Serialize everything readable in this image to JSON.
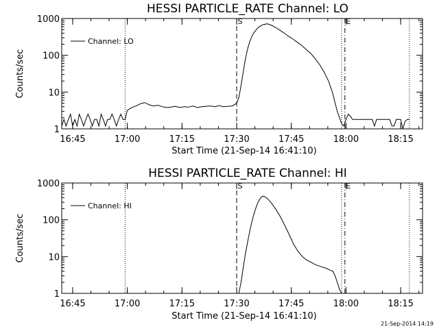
{
  "footer": {
    "timestamp": "21-Sep-2014 14:19"
  },
  "chart_data": [
    {
      "type": "line",
      "title": "HESSI PARTICLE_RATE Channel: LO",
      "xlabel": "Start Time (21-Sep-14 16:41:10)",
      "ylabel": "Counts/sec",
      "xlim": [
        16.7,
        18.35
      ],
      "ylim": [
        1,
        1000
      ],
      "yscale": "log",
      "xticks": [
        {
          "value": 16.75,
          "label": "16:45"
        },
        {
          "value": 17.0,
          "label": "17:00"
        },
        {
          "value": 17.25,
          "label": "17:15"
        },
        {
          "value": 17.5,
          "label": "17:30"
        },
        {
          "value": 17.75,
          "label": "17:45"
        },
        {
          "value": 18.0,
          "label": "18:00"
        },
        {
          "value": 18.25,
          "label": "18:15"
        }
      ],
      "yticks": [
        {
          "value": 1,
          "label": "1"
        },
        {
          "value": 10,
          "label": "10"
        },
        {
          "value": 100,
          "label": "100"
        },
        {
          "value": 1000,
          "label": "1000"
        }
      ],
      "grid": false,
      "legend": "top-left",
      "series": [
        {
          "name": "Channel: LO",
          "x": [
            16.7,
            16.71,
            16.72,
            16.73,
            16.74,
            16.75,
            16.76,
            16.77,
            16.78,
            16.79,
            16.8,
            16.81,
            16.82,
            16.83,
            16.84,
            16.85,
            16.86,
            16.87,
            16.88,
            16.89,
            16.9,
            16.91,
            16.92,
            16.93,
            16.94,
            16.95,
            16.96,
            16.97,
            16.98,
            16.985,
            16.99,
            17.0,
            17.02,
            17.04,
            17.06,
            17.08,
            17.1,
            17.12,
            17.14,
            17.16,
            17.18,
            17.2,
            17.22,
            17.24,
            17.26,
            17.28,
            17.3,
            17.32,
            17.34,
            17.36,
            17.38,
            17.4,
            17.42,
            17.44,
            17.46,
            17.48,
            17.5,
            17.51,
            17.52,
            17.53,
            17.54,
            17.55,
            17.56,
            17.57,
            17.58,
            17.59,
            17.6,
            17.62,
            17.64,
            17.66,
            17.68,
            17.7,
            17.72,
            17.74,
            17.76,
            17.78,
            17.8,
            17.82,
            17.84,
            17.86,
            17.88,
            17.9,
            17.92,
            17.94,
            17.95,
            17.96,
            17.97,
            17.98,
            17.99,
            18.0,
            18.01,
            18.02,
            18.03,
            18.04,
            18.05,
            18.06,
            18.07,
            18.08,
            18.09,
            18.1,
            18.11,
            18.12,
            18.13,
            18.14,
            18.15,
            18.16,
            18.17,
            18.18,
            18.19,
            18.2,
            18.21,
            18.22,
            18.23,
            18.24,
            18.25,
            18.26,
            18.27,
            18.28,
            18.29
          ],
          "y": [
            1.2,
            1.8,
            1.2,
            1.8,
            2.5,
            1.2,
            1.8,
            1.2,
            2.5,
            1.8,
            1.2,
            1.8,
            2.5,
            1.8,
            1.2,
            1.8,
            1.8,
            1.2,
            2.5,
            1.8,
            1.2,
            1.8,
            1.8,
            2.5,
            1.8,
            1.2,
            1.8,
            2.5,
            1.8,
            1.8,
            1.8,
            3.2,
            3.8,
            4.2,
            4.8,
            5.2,
            4.5,
            4.2,
            4.4,
            4.0,
            3.8,
            3.9,
            4.1,
            3.8,
            4.0,
            3.9,
            4.2,
            3.8,
            4.0,
            4.1,
            4.2,
            4.0,
            4.3,
            4.0,
            4.1,
            4.2,
            5.0,
            7.0,
            15,
            35,
            80,
            150,
            240,
            330,
            420,
            500,
            580,
            680,
            720,
            650,
            560,
            470,
            390,
            320,
            270,
            220,
            180,
            140,
            110,
            80,
            55,
            35,
            20,
            9,
            5,
            3,
            2,
            1.4,
            1.2,
            1.8,
            2.5,
            2.2,
            1.8,
            1.8,
            1.8,
            1.8,
            1.8,
            1.8,
            1.8,
            1.8,
            1.8,
            1.8,
            1.2,
            1.8,
            1.8,
            1.8,
            1.8,
            1.8,
            1.8,
            1.8,
            1.2,
            1.2,
            1.8,
            1.8,
            1.8,
            1.0,
            1.6,
            1.8,
            1.8
          ]
        }
      ],
      "markers": [
        {
          "x": 16.99,
          "style": "dotted",
          "label": ""
        },
        {
          "x": 17.5,
          "style": "dashed",
          "label": "S"
        },
        {
          "x": 17.98,
          "style": "dotted",
          "label": ""
        },
        {
          "x": 17.995,
          "style": "dashdot",
          "label": "E"
        },
        {
          "x": 18.29,
          "style": "dotted",
          "label": ""
        }
      ]
    },
    {
      "type": "line",
      "title": "HESSI PARTICLE_RATE Channel: HI",
      "xlabel": "Start Time (21-Sep-14 16:41:10)",
      "ylabel": "Counts/sec",
      "xlim": [
        16.7,
        18.35
      ],
      "ylim": [
        1,
        1000
      ],
      "yscale": "log",
      "xticks": [
        {
          "value": 16.75,
          "label": "16:45"
        },
        {
          "value": 17.0,
          "label": "17:00"
        },
        {
          "value": 17.25,
          "label": "17:15"
        },
        {
          "value": 17.5,
          "label": "17:30"
        },
        {
          "value": 17.75,
          "label": "17:45"
        },
        {
          "value": 18.0,
          "label": "18:00"
        },
        {
          "value": 18.25,
          "label": "18:15"
        }
      ],
      "yticks": [
        {
          "value": 1,
          "label": "1"
        },
        {
          "value": 10,
          "label": "10"
        },
        {
          "value": 100,
          "label": "100"
        },
        {
          "value": 1000,
          "label": "1000"
        }
      ],
      "grid": false,
      "legend": "top-left",
      "series": [
        {
          "name": "Channel: HI",
          "x": [
            17.51,
            17.52,
            17.53,
            17.54,
            17.55,
            17.56,
            17.57,
            17.58,
            17.59,
            17.6,
            17.61,
            17.62,
            17.63,
            17.64,
            17.65,
            17.66,
            17.67,
            17.68,
            17.7,
            17.72,
            17.74,
            17.76,
            17.78,
            17.8,
            17.82,
            17.84,
            17.86,
            17.88,
            17.9,
            17.91,
            17.92,
            17.93,
            17.94,
            17.95,
            17.96,
            17.97,
            17.98
          ],
          "y": [
            1.0,
            2.0,
            5.0,
            12,
            25,
            50,
            90,
            150,
            230,
            320,
            400,
            440,
            420,
            380,
            330,
            280,
            230,
            190,
            120,
            70,
            40,
            22,
            14,
            10,
            8,
            7,
            6,
            5.5,
            5,
            4.8,
            4.5,
            4.2,
            4.0,
            3.0,
            2.0,
            1.3,
            1.0
          ]
        }
      ],
      "markers": [
        {
          "x": 16.99,
          "style": "dotted",
          "label": ""
        },
        {
          "x": 17.5,
          "style": "dashed",
          "label": "S"
        },
        {
          "x": 17.98,
          "style": "dotted",
          "label": ""
        },
        {
          "x": 17.995,
          "style": "dashdot",
          "label": "E"
        },
        {
          "x": 18.29,
          "style": "dotted",
          "label": ""
        }
      ]
    }
  ]
}
